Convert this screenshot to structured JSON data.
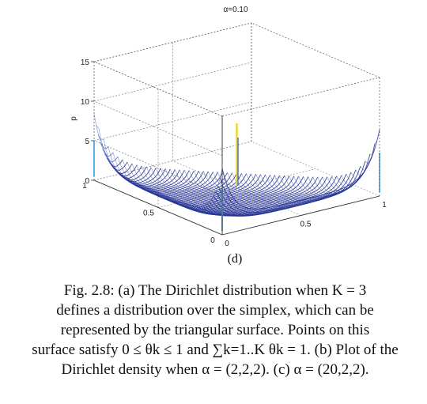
{
  "chart_data": {
    "type": "surface",
    "title": "α=0.10",
    "subplot_label": "(d)",
    "zlabel": "p",
    "zlim": [
      0,
      15
    ],
    "z_ticks": [
      "0",
      "5",
      "10",
      "15"
    ],
    "x_ticks": [
      "0",
      "0.5",
      "1"
    ],
    "y_ticks": [
      "0",
      "0.5",
      "1"
    ],
    "alpha": 0.1,
    "grid": true,
    "colormap": [
      "#1e2a8c",
      "#3d6fd9",
      "#5fb0e8",
      "#f2d300"
    ],
    "surface": {
      "corner_density": 6.5,
      "center_spike": 8.2,
      "interior_density": 0.3
    }
  },
  "caption": {
    "lines": [
      "Fig. 2.8: (a) The Dirichlet distribution when K = 3",
      "defines a distribution over the simplex, which can be",
      "represented by the triangular surface. Points on this",
      "surface satisfy 0 ≤ θk ≤ 1 and ∑k=1..K θk = 1. (b) Plot of the",
      "Dirichlet density when α = (2,2,2). (c) α = (20,2,2)."
    ]
  }
}
